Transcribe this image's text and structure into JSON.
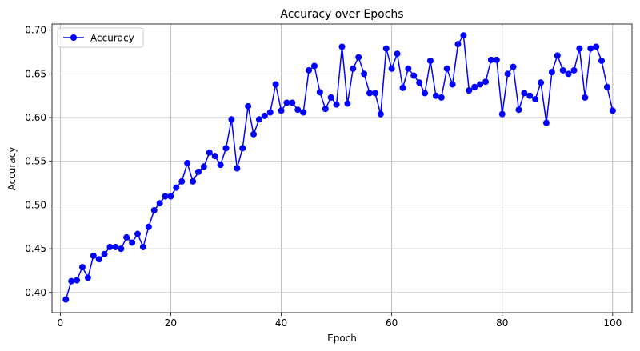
{
  "chart_data": {
    "type": "line",
    "title": "Accuracy over Epochs",
    "xlabel": "Epoch",
    "ylabel": "Accuracy",
    "xlim": [
      -1.5,
      103.5
    ],
    "ylim": [
      0.377,
      0.707
    ],
    "xticks": [
      0,
      20,
      40,
      60,
      80,
      100
    ],
    "xtick_labels": [
      "0",
      "20",
      "40",
      "60",
      "80",
      "100"
    ],
    "yticks": [
      0.4,
      0.45,
      0.5,
      0.55,
      0.6,
      0.65,
      0.7
    ],
    "ytick_labels": [
      "0.40",
      "0.45",
      "0.50",
      "0.55",
      "0.60",
      "0.65",
      "0.70"
    ],
    "grid": true,
    "legend_position": "top-left",
    "series": [
      {
        "name": "Accuracy",
        "color": "#0000ff",
        "marker": "circle",
        "x": [
          1,
          2,
          3,
          4,
          5,
          6,
          7,
          8,
          9,
          10,
          11,
          12,
          13,
          14,
          15,
          16,
          17,
          18,
          19,
          20,
          21,
          22,
          23,
          24,
          25,
          26,
          27,
          28,
          29,
          30,
          31,
          32,
          33,
          34,
          35,
          36,
          37,
          38,
          39,
          40,
          41,
          42,
          43,
          44,
          45,
          46,
          47,
          48,
          49,
          50,
          51,
          52,
          53,
          54,
          55,
          56,
          57,
          58,
          59,
          60,
          61,
          62,
          63,
          64,
          65,
          66,
          67,
          68,
          69,
          70,
          71,
          72,
          73,
          74,
          75,
          76,
          77,
          78,
          79,
          80,
          81,
          82,
          83,
          84,
          85,
          86,
          87,
          88,
          89,
          90,
          91,
          92,
          93,
          94,
          95,
          96,
          97,
          98,
          99,
          100
        ],
        "y": [
          0.392,
          0.413,
          0.414,
          0.429,
          0.417,
          0.442,
          0.438,
          0.444,
          0.452,
          0.452,
          0.45,
          0.463,
          0.457,
          0.467,
          0.452,
          0.475,
          0.494,
          0.502,
          0.51,
          0.51,
          0.52,
          0.527,
          0.548,
          0.527,
          0.538,
          0.544,
          0.56,
          0.556,
          0.546,
          0.565,
          0.598,
          0.542,
          0.565,
          0.613,
          0.581,
          0.598,
          0.602,
          0.606,
          0.638,
          0.608,
          0.617,
          0.617,
          0.609,
          0.606,
          0.654,
          0.659,
          0.629,
          0.61,
          0.623,
          0.615,
          0.681,
          0.616,
          0.656,
          0.669,
          0.65,
          0.628,
          0.628,
          0.604,
          0.679,
          0.656,
          0.673,
          0.634,
          0.656,
          0.648,
          0.64,
          0.628,
          0.665,
          0.625,
          0.623,
          0.656,
          0.638,
          0.684,
          0.694,
          0.631,
          0.635,
          0.638,
          0.641,
          0.666,
          0.666,
          0.604,
          0.65,
          0.658,
          0.609,
          0.628,
          0.625,
          0.621,
          0.64,
          0.594,
          0.652,
          0.671,
          0.654,
          0.65,
          0.654,
          0.679,
          0.623,
          0.679,
          0.681,
          0.665,
          0.635,
          0.608
        ]
      }
    ]
  }
}
